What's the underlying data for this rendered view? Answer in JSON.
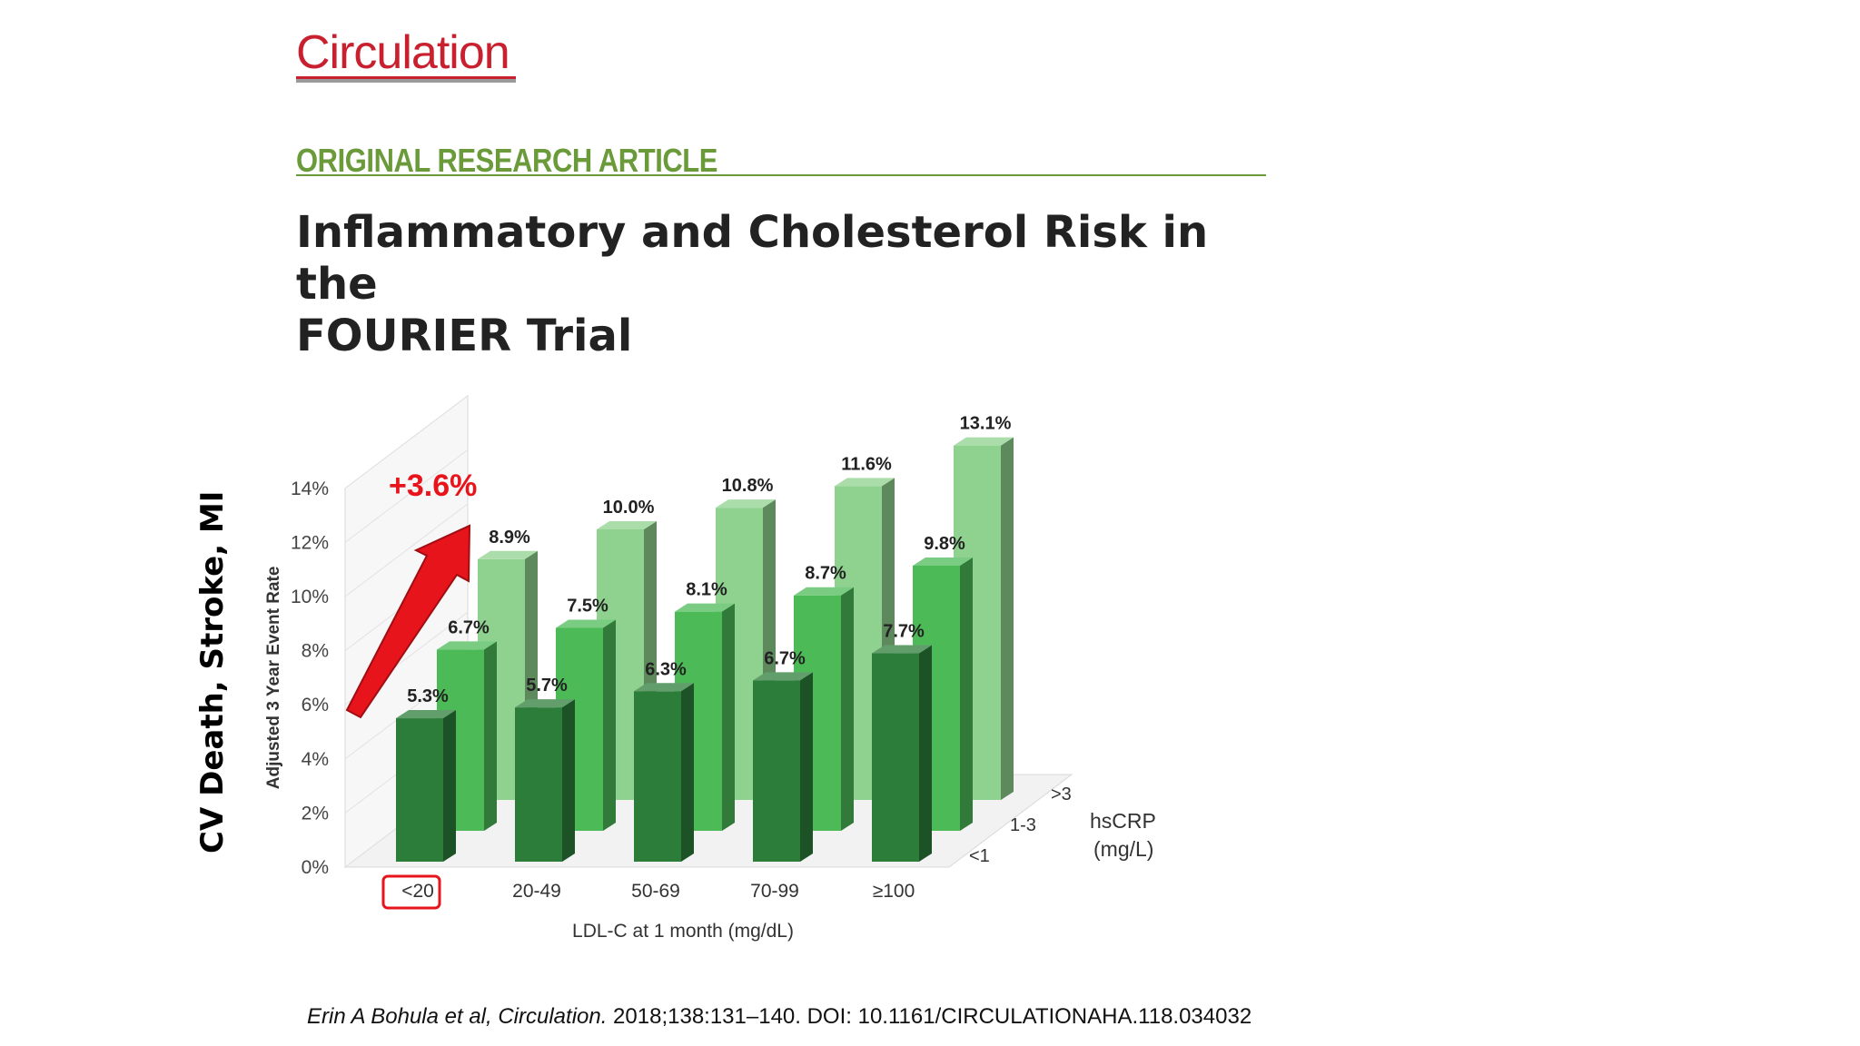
{
  "journal": "Circulation",
  "section": "ORIGINAL RESEARCH ARTICLE",
  "title_line1": "Inflammatory and Cholesterol Risk in the",
  "title_line2": "FOURIER Trial",
  "side_label": "CV Death, Stroke, MI",
  "citation": {
    "authors": "Erin A Bohula et al, ",
    "journal": "Circulation.",
    "rest": " 2018;138:131–140. DOI: 10.1161/CIRCULATIONAHA.118.034032"
  },
  "annotation": {
    "text": "+3.6%",
    "highlighted_category": "<20",
    "color": "#e8141b"
  },
  "colors": {
    "low": "#2d7d3a",
    "mid": "#4cbb57",
    "high": "#8fd28f"
  },
  "chart_data": {
    "type": "bar",
    "xlabel": "LDL-C at 1 month (mg/dL)",
    "ylabel": "Adjusted 3 Year Event Rate",
    "zlabel_line1": "hsCRP",
    "zlabel_line2": "(mg/L)",
    "ylim": [
      0,
      14
    ],
    "yticks": [
      "0%",
      "2%",
      "4%",
      "6%",
      "8%",
      "10%",
      "12%",
      "14%"
    ],
    "categories": [
      "<20",
      "20-49",
      "50-69",
      "70-99",
      "≥100"
    ],
    "series": [
      {
        "name": "<1",
        "values": [
          5.3,
          5.7,
          6.3,
          6.7,
          7.7
        ],
        "labels": [
          "5.3%",
          "5.7%",
          "6.3%",
          "6.7%",
          "7.7%"
        ]
      },
      {
        "name": "1-3",
        "values": [
          6.7,
          7.5,
          8.1,
          8.7,
          9.8
        ],
        "labels": [
          "6.7%",
          "7.5%",
          "8.1%",
          "8.7%",
          "9.8%"
        ]
      },
      {
        "name": ">3",
        "values": [
          8.9,
          10.0,
          10.8,
          11.6,
          13.1
        ],
        "labels": [
          "8.9%",
          "10.0%",
          "10.8%",
          "11.6%",
          "13.1%"
        ]
      }
    ]
  }
}
